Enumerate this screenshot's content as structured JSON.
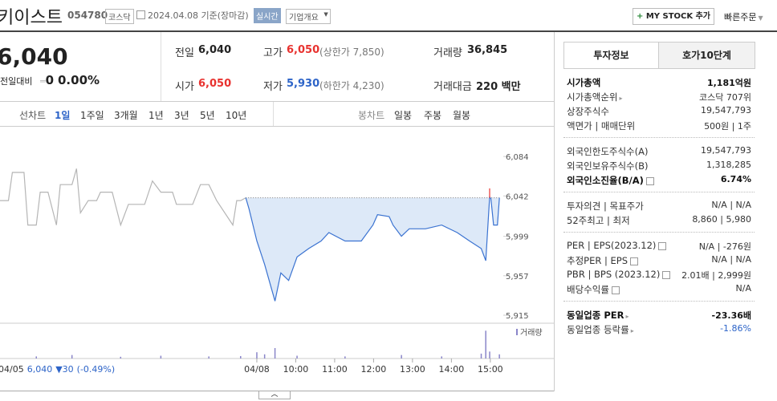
{
  "header": {
    "name": "키이스트",
    "code": "054780",
    "market": "코스닥",
    "date": "2024.04.08 기준(장마감)",
    "realtime": "실시간",
    "company_info": "기업개요",
    "mystock": "MY STOCK 추가",
    "quick_order": "빠른주문"
  },
  "quote": {
    "price": "6,040",
    "change_label": "전일대비",
    "change": "0",
    "change_rate": "0.00%",
    "items": [
      {
        "label": "전일",
        "value": "6,040"
      },
      {
        "label": "고가",
        "value": "6,050",
        "extra": "(상한가 7,850)"
      },
      {
        "label": "거래량",
        "value": "36,845"
      },
      {
        "label": "시가",
        "value": "6,050"
      },
      {
        "label": "저가",
        "value": "5,930",
        "extra": "(하한가 4,230)"
      },
      {
        "label": "거래대금",
        "value": "220 백만"
      }
    ]
  },
  "tabs": {
    "line_chart": "선차트",
    "periods": [
      "1일",
      "1주일",
      "3개월",
      "1년",
      "3년",
      "5년",
      "10년"
    ],
    "candle_chart": "봉차트",
    "candle_periods": [
      "일봉",
      "주봉",
      "월봉"
    ]
  },
  "chart": {
    "type": "line",
    "xlim": [
      -396,
      380
    ],
    "ylim": [
      5909,
      6114
    ],
    "yticks": [
      {
        "value": 6084,
        "label": "6,084"
      },
      {
        "value": 6042,
        "label": "6,042"
      },
      {
        "value": 5999,
        "label": "5,999"
      },
      {
        "value": 5957,
        "label": "5,957"
      },
      {
        "value": 5915,
        "label": "5,915"
      }
    ],
    "xticks": [
      {
        "value": 0,
        "label": "04/08"
      },
      {
        "value": 60,
        "label": "10:00"
      },
      {
        "value": 120,
        "label": "11:00"
      },
      {
        "value": 180,
        "label": "12:00"
      },
      {
        "value": 240,
        "label": "13:00"
      },
      {
        "value": 300,
        "label": "14:00"
      },
      {
        "value": 360,
        "label": "15:00"
      }
    ],
    "reference": 6040,
    "series": [
      {
        "color": "#b5b5b5",
        "x": [
          -396,
          -383,
          -377,
          -359,
          -353,
          -340,
          -334,
          -322,
          -309,
          -303,
          -285,
          -278,
          -272,
          -260,
          -247,
          -241,
          -223,
          -210,
          -198,
          -173,
          -161,
          -148,
          -130,
          -124,
          -99,
          -87,
          -74,
          -62,
          -37,
          -31,
          -25,
          -17
        ],
        "values": [
          6037,
          6037,
          6067,
          6067,
          6011,
          6011,
          6046,
          6046,
          6011,
          6054,
          6054,
          6071,
          6024,
          6037,
          6037,
          6046,
          6046,
          6011,
          6033,
          6033,
          6058,
          6046,
          6046,
          6033,
          6033,
          6054,
          6054,
          6037,
          6011,
          6037,
          6037,
          6040
        ]
      },
      {
        "color": "#3b73d1",
        "fill": "#dde9f8",
        "x": [
          -17,
          -12,
          0,
          12,
          28,
          37,
          49,
          62,
          80,
          99,
          111,
          136,
          161,
          179,
          186,
          204,
          210,
          223,
          235,
          260,
          285,
          309,
          328,
          346,
          353,
          359,
          361,
          365,
          371,
          374
        ],
        "values": [
          6040,
          6028,
          5994,
          5969,
          5930,
          5960,
          5952,
          5977,
          5986,
          5994,
          6003,
          5994,
          5994,
          6011,
          6022,
          6020,
          6011,
          5999,
          6007,
          6007,
          6011,
          6003,
          5994,
          5986,
          5973,
          6041,
          6039,
          6011,
          6011,
          6040
        ]
      },
      {
        "color": "#e8322f",
        "x": [
          359,
          359
        ],
        "values": [
          6040,
          6050
        ]
      }
    ],
    "volume": {
      "label": "거래량",
      "color": "#8a86c9",
      "ylim": [
        0,
        4500
      ],
      "x": [
        -340,
        -285,
        -210,
        -148,
        -74,
        -25,
        0,
        12,
        28,
        62,
        136,
        223,
        285,
        346,
        353,
        359,
        374
      ],
      "values": [
        300,
        500,
        250,
        400,
        300,
        350,
        900,
        600,
        1500,
        400,
        300,
        500,
        300,
        700,
        4000,
        1000,
        600
      ]
    },
    "footer": {
      "date": "04/05",
      "price": "6,040",
      "change": "▼30",
      "rate": "(-0.49%)"
    }
  },
  "panel": {
    "tabs": [
      "투자정보",
      "호가10단계"
    ],
    "groups": [
      [
        {
          "label": "시가총액",
          "value": "1,181억원"
        },
        {
          "label": "시가총액순위",
          "value": "코스닥 707위"
        },
        {
          "label": "상장주식수",
          "value": "19,547,793"
        },
        {
          "label": "액면가 | 매매단위",
          "value": "500원 | 1주"
        }
      ],
      [
        {
          "label": "외국인한도주식수(A)",
          "value": "19,547,793"
        },
        {
          "label": "외국인보유주식수(B)",
          "value": "1,318,285"
        },
        {
          "label": "외국인소진율(B/A)",
          "value": "6.74%"
        }
      ],
      [
        {
          "label": "투자의견 | 목표주가",
          "value": "N/A | N/A"
        },
        {
          "label": "52주최고 | 최저",
          "value": "8,860 | 5,980"
        }
      ],
      [
        {
          "label": "PER | EPS(2023.12)",
          "value": "N/A | -276원"
        },
        {
          "label": "추정PER | EPS",
          "value": "N/A | N/A"
        },
        {
          "label": "PBR | BPS (2023.12)",
          "value": "2.01배 | 2,999원"
        },
        {
          "label": "배당수익률",
          "value": "N/A"
        }
      ],
      [
        {
          "label": "동일업종 PER",
          "value": "-23.36배"
        },
        {
          "label": "동일업종 등락률",
          "value": "-1.86%"
        }
      ]
    ]
  }
}
